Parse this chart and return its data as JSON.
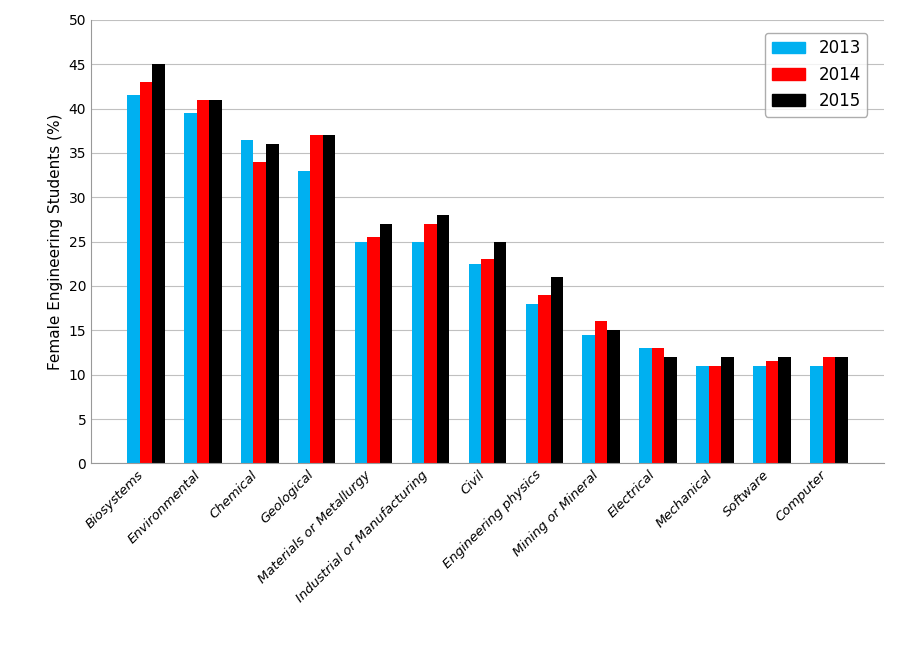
{
  "categories": [
    "Biosystems",
    "Environmental",
    "Chemical",
    "Geological",
    "Materials or Metallurgy",
    "Industrial or Manufacturing",
    "Civil",
    "Engineering physics",
    "Mining or Mineral",
    "Electrical",
    "Mechanical",
    "Software",
    "Computer"
  ],
  "values_2013": [
    41.5,
    39.5,
    36.5,
    33.0,
    25.0,
    25.0,
    22.5,
    18.0,
    14.5,
    13.0,
    11.0,
    11.0,
    11.0
  ],
  "values_2014": [
    43.0,
    41.0,
    34.0,
    37.0,
    25.5,
    27.0,
    23.0,
    19.0,
    16.0,
    13.0,
    11.0,
    11.5,
    12.0
  ],
  "values_2015": [
    45.0,
    41.0,
    36.0,
    37.0,
    27.0,
    28.0,
    25.0,
    21.0,
    15.0,
    12.0,
    12.0,
    12.0,
    12.0
  ],
  "color_2013": "#00B0F0",
  "color_2014": "#FF0000",
  "color_2015": "#000000",
  "ylabel": "Female Engineering Students (%)",
  "ylim": [
    0,
    50
  ],
  "yticks": [
    0,
    5,
    10,
    15,
    20,
    25,
    30,
    35,
    40,
    45,
    50
  ],
  "legend_labels": [
    "2013",
    "2014",
    "2015"
  ],
  "bar_width": 0.22,
  "background_color": "#FFFFFF",
  "grid_color": "#C0C0C0",
  "tick_label_fontsize": 9.5,
  "ylabel_fontsize": 11,
  "legend_fontsize": 12
}
